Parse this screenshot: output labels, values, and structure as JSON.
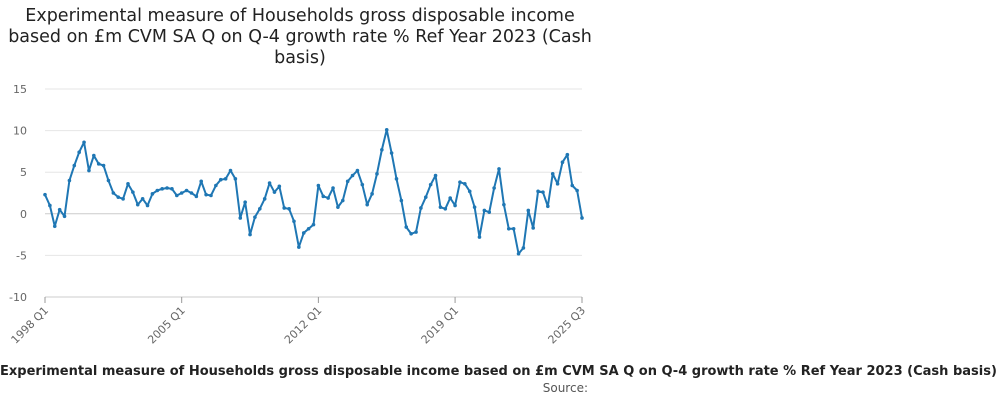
{
  "chart_data": {
    "type": "line",
    "title": "Experimental measure of Households gross disposable income based on £m CVM SA Q on Q-4 growth rate % Ref Year 2023 (Cash basis)",
    "xlabel": "Experimental measure of Households gross disposable income based on £m CVM SA Q on Q-4 growth rate % Ref Year 2023 (Cash basis)",
    "ylabel": "",
    "ylim": [
      -10,
      15
    ],
    "yticks": [
      "15",
      "10",
      "5",
      "0",
      "-5",
      "-10"
    ],
    "yticks_values": [
      15,
      10,
      5,
      0,
      -5,
      -10
    ],
    "xtick_labels": [
      "1998 Q1",
      "2005 Q1",
      "2012 Q1",
      "2019 Q1",
      "2025 Q3"
    ],
    "xtick_index": [
      0,
      28,
      56,
      84,
      110
    ],
    "grid": true,
    "legend": "none",
    "color": "#1f77b4",
    "series": [
      {
        "values": [
          2.3,
          1.0,
          -1.5,
          0.5,
          -0.3,
          4.0,
          5.8,
          7.4,
          8.6,
          5.2,
          7.0,
          6.0,
          5.8,
          4.0,
          2.5,
          2.0,
          1.8,
          3.6,
          2.6,
          1.1,
          1.8,
          1.0,
          2.4,
          2.8,
          3.0,
          3.1,
          3.0,
          2.2,
          2.5,
          2.8,
          2.5,
          2.1,
          3.9,
          2.3,
          2.2,
          3.4,
          4.1,
          4.2,
          5.2,
          4.2,
          -0.5,
          1.4,
          -2.5,
          -0.4,
          0.6,
          1.8,
          3.7,
          2.6,
          3.3,
          0.7,
          0.6,
          -0.9,
          -4.0,
          -2.3,
          -1.8,
          -1.3,
          3.4,
          2.1,
          1.9,
          3.1,
          0.8,
          1.6,
          3.9,
          4.6,
          5.2,
          3.5,
          1.1,
          2.4,
          4.8,
          7.7,
          10.1,
          7.3,
          4.2,
          1.6,
          -1.6,
          -2.4,
          -2.2,
          0.7,
          2.0,
          3.5,
          4.6,
          0.8,
          0.6,
          1.9,
          1.0,
          3.8,
          3.6,
          2.7,
          0.8,
          -2.8,
          0.4,
          0.2,
          3.1,
          5.4,
          1.1,
          -1.8,
          -1.8,
          -4.8,
          -4.1,
          0.4,
          -1.7,
          2.7,
          2.6,
          0.9,
          4.8,
          3.6,
          6.2,
          7.1,
          3.4,
          2.8,
          -0.5
        ]
      }
    ]
  },
  "footer": {
    "source_label": "Source:"
  }
}
